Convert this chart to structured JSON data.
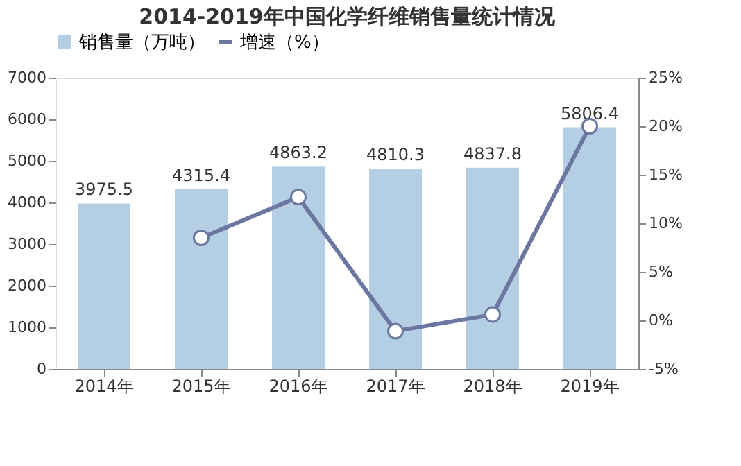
{
  "chart_data": {
    "type": "bar",
    "title": "2014-2019年中国化学纤维销售量统计情况",
    "categories": [
      "2014年",
      "2015年",
      "2016年",
      "2017年",
      "2018年",
      "2019年"
    ],
    "series": [
      {
        "name": "销售量（万吨）",
        "color": "#b4cfe3",
        "values": [
          3975.5,
          4315.4,
          4863.2,
          4810.3,
          4837.8,
          5806.4
        ],
        "data_labels": true
      },
      {
        "name": "增速（%）",
        "type": "line",
        "axis": "y2",
        "color": "#6b77a0",
        "marker": "circle",
        "values": [
          null,
          8.5,
          12.7,
          -1.1,
          0.6,
          20.0
        ]
      }
    ],
    "ylim": [
      0,
      7000
    ],
    "yticks": [
      0,
      1000,
      2000,
      3000,
      4000,
      5000,
      6000,
      7000
    ],
    "y2lim": [
      -5,
      25
    ],
    "y2ticks": [
      {
        "value": -5,
        "label": "-5%"
      },
      {
        "value": 0,
        "label": "0%"
      },
      {
        "value": 5,
        "label": "5%"
      },
      {
        "value": 10,
        "label": "10%"
      },
      {
        "value": 15,
        "label": "15%"
      },
      {
        "value": 20,
        "label": "20%"
      },
      {
        "value": 25,
        "label": "25%"
      }
    ],
    "grid": false,
    "legend": "top"
  }
}
